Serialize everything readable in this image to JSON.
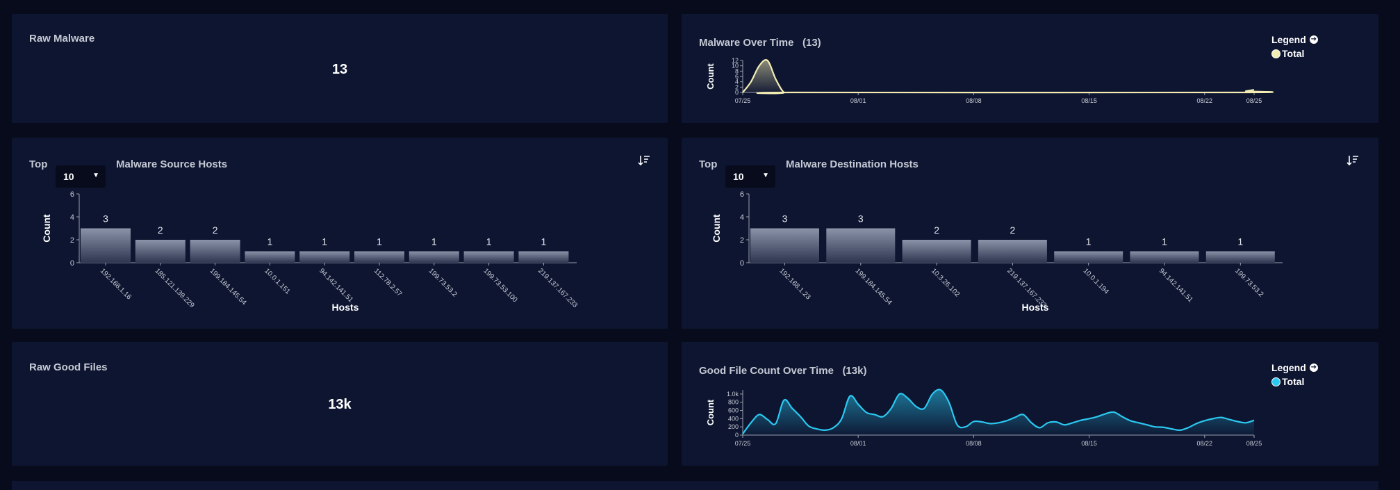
{
  "raw_malware": {
    "title": "Raw Malware",
    "value": "13"
  },
  "malware_over_time": {
    "title": "Malware Over Time",
    "count": "(13)",
    "y_axis_label": "Count",
    "legend_title": "Legend",
    "legend_item": "Total",
    "color": "#f3edb4",
    "chart_data": {
      "type": "area",
      "y_ticks": [
        "0",
        "2",
        "4",
        "6",
        "8",
        "10",
        "12"
      ],
      "x_ticks": [
        "07/25",
        "08/01",
        "08/08",
        "08/15",
        "08/22",
        "08/25"
      ],
      "ylim": [
        0,
        12
      ],
      "days": 31,
      "x": [
        0,
        0.5,
        1,
        1.5,
        2,
        2.5,
        3,
        30,
        30.5,
        31
      ],
      "values": [
        0,
        4,
        10,
        12,
        5,
        0,
        0,
        0,
        0.5,
        1
      ]
    }
  },
  "source_hosts": {
    "top_label": "Top",
    "select_value": "10",
    "title": "Malware Source Hosts",
    "y_axis_label": "Count",
    "x_axis_label": "Hosts",
    "chart_data": {
      "type": "bar",
      "categories": [
        "192.168.1.16",
        "185.121.139.229",
        "199.184.145.54",
        "10.0.1.151",
        "94.142.141.51",
        "112.78.2.57",
        "199.73.53.2",
        "199.73.53.100",
        "219.137.167.233"
      ],
      "values": [
        3,
        2,
        2,
        1,
        1,
        1,
        1,
        1,
        1
      ],
      "value_labels": [
        "3",
        "2",
        "2",
        "1",
        "1",
        "1",
        "1",
        "1",
        "1"
      ],
      "y_ticks": [
        "0",
        "2",
        "4",
        "6"
      ],
      "ylim": [
        0,
        6
      ]
    }
  },
  "dest_hosts": {
    "top_label": "Top",
    "select_value": "10",
    "title": "Malware Destination Hosts",
    "y_axis_label": "Count",
    "x_axis_label": "Hosts",
    "chart_data": {
      "type": "bar",
      "categories": [
        "192.168.1.23",
        "199.184.145.54",
        "10.3.26.102",
        "219.137.167.233",
        "10.0.1.194",
        "94.142.141.51",
        "199.73.53.2"
      ],
      "values": [
        3,
        3,
        2,
        2,
        1,
        1,
        1
      ],
      "value_labels": [
        "3",
        "3",
        "2",
        "2",
        "1",
        "1",
        "1"
      ],
      "y_ticks": [
        "0",
        "2",
        "4",
        "6"
      ],
      "ylim": [
        0,
        6
      ]
    }
  },
  "raw_good_files": {
    "title": "Raw Good Files",
    "value": "13k"
  },
  "good_files_over_time": {
    "title": "Good File Count Over Time",
    "count": "(13k)",
    "y_axis_label": "Count",
    "legend_title": "Legend",
    "legend_item": "Total",
    "color": "#2bc8f0",
    "chart_data": {
      "type": "area",
      "y_ticks": [
        "0",
        "200",
        "400",
        "600",
        "800",
        "1.0k"
      ],
      "x_ticks": [
        "07/25",
        "08/01",
        "08/08",
        "08/15",
        "08/22",
        "08/25"
      ],
      "ylim": [
        0,
        1100
      ],
      "days": 31,
      "x": [
        0,
        0.5,
        1,
        1.5,
        2,
        2.5,
        3,
        3.5,
        4,
        4.5,
        5,
        5.5,
        6,
        6.5,
        7,
        7.5,
        8,
        8.5,
        9,
        9.5,
        10,
        10.5,
        11,
        11.5,
        12,
        12.5,
        13,
        13.5,
        14,
        14.5,
        15,
        15.5,
        16,
        16.5,
        17,
        17.5,
        18,
        18.5,
        19,
        19.5,
        20,
        20.5,
        21,
        21.5,
        22,
        22.5,
        23,
        23.5,
        24,
        24.5,
        25,
        25.5,
        26,
        26.5,
        27,
        27.5,
        28,
        28.5,
        29,
        29.5,
        30,
        30.5,
        31
      ],
      "values": [
        30,
        300,
        500,
        380,
        280,
        850,
        650,
        450,
        220,
        150,
        120,
        180,
        400,
        950,
        750,
        550,
        500,
        450,
        650,
        1000,
        900,
        700,
        650,
        1000,
        1100,
        800,
        250,
        200,
        330,
        320,
        280,
        300,
        350,
        430,
        500,
        300,
        180,
        300,
        320,
        250,
        300,
        360,
        400,
        450,
        520,
        560,
        450,
        350,
        300,
        250,
        200,
        190,
        150,
        120,
        180,
        280,
        350,
        400,
        430,
        380,
        330,
        300,
        360
      ]
    }
  }
}
